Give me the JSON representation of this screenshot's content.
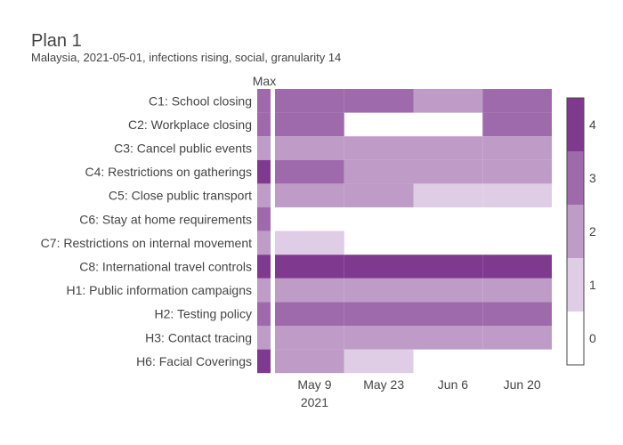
{
  "chart_data": {
    "type": "heatmap",
    "title": "Plan 1",
    "subtitle": "Malaysia, 2021-05-01, infections rising, social, granularity 14",
    "max_column_label": "Max",
    "rows": [
      {
        "label": "C1: School closing",
        "max": 3,
        "values": [
          3,
          3,
          2,
          3
        ]
      },
      {
        "label": "C2: Workplace closing",
        "max": 3,
        "values": [
          3,
          null,
          null,
          3
        ]
      },
      {
        "label": "C3: Cancel public events",
        "max": 2,
        "values": [
          2,
          2,
          2,
          2
        ]
      },
      {
        "label": "C4: Restrictions on gatherings",
        "max": 4,
        "values": [
          3,
          2,
          2,
          2
        ]
      },
      {
        "label": "C5: Close public transport",
        "max": 2,
        "values": [
          2,
          2,
          1,
          1
        ]
      },
      {
        "label": "C6: Stay at home requirements",
        "max": 3,
        "values": [
          null,
          null,
          null,
          null
        ]
      },
      {
        "label": "C7: Restrictions on internal movement",
        "max": 2,
        "values": [
          1,
          null,
          null,
          null
        ]
      },
      {
        "label": "C8: International travel controls",
        "max": 4,
        "values": [
          4,
          4,
          4,
          4
        ]
      },
      {
        "label": "H1: Public information campaigns",
        "max": 2,
        "values": [
          2,
          2,
          2,
          2
        ]
      },
      {
        "label": "H2: Testing policy",
        "max": 3,
        "values": [
          3,
          3,
          3,
          3
        ]
      },
      {
        "label": "H3: Contact tracing",
        "max": 2,
        "values": [
          2,
          2,
          2,
          2
        ]
      },
      {
        "label": "H6: Facial Coverings",
        "max": 4,
        "values": [
          2,
          1,
          null,
          null
        ]
      }
    ],
    "x_periods": [
      "2021-05-01",
      "2021-05-15",
      "2021-05-29",
      "2021-06-12"
    ],
    "x_end": "2021-06-26",
    "x_ticks": [
      {
        "date": "2021-05-09",
        "label": "May 9",
        "sublabel": "2021"
      },
      {
        "date": "2021-05-23",
        "label": "May 23",
        "sublabel": ""
      },
      {
        "date": "2021-06-06",
        "label": "Jun 6",
        "sublabel": ""
      },
      {
        "date": "2021-06-20",
        "label": "Jun 20",
        "sublabel": ""
      }
    ],
    "colorscale": {
      "min": -0.5,
      "max": 4.5,
      "ticks": [
        0,
        1,
        2,
        3,
        4
      ],
      "bands": [
        {
          "value": 0,
          "color": "#ffffff"
        },
        {
          "value": 1,
          "color": "#dfcde5"
        },
        {
          "value": 2,
          "color": "#bf9bc8"
        },
        {
          "value": 3,
          "color": "#9f6aac"
        },
        {
          "value": 4,
          "color": "#7f3a8f"
        }
      ]
    }
  }
}
